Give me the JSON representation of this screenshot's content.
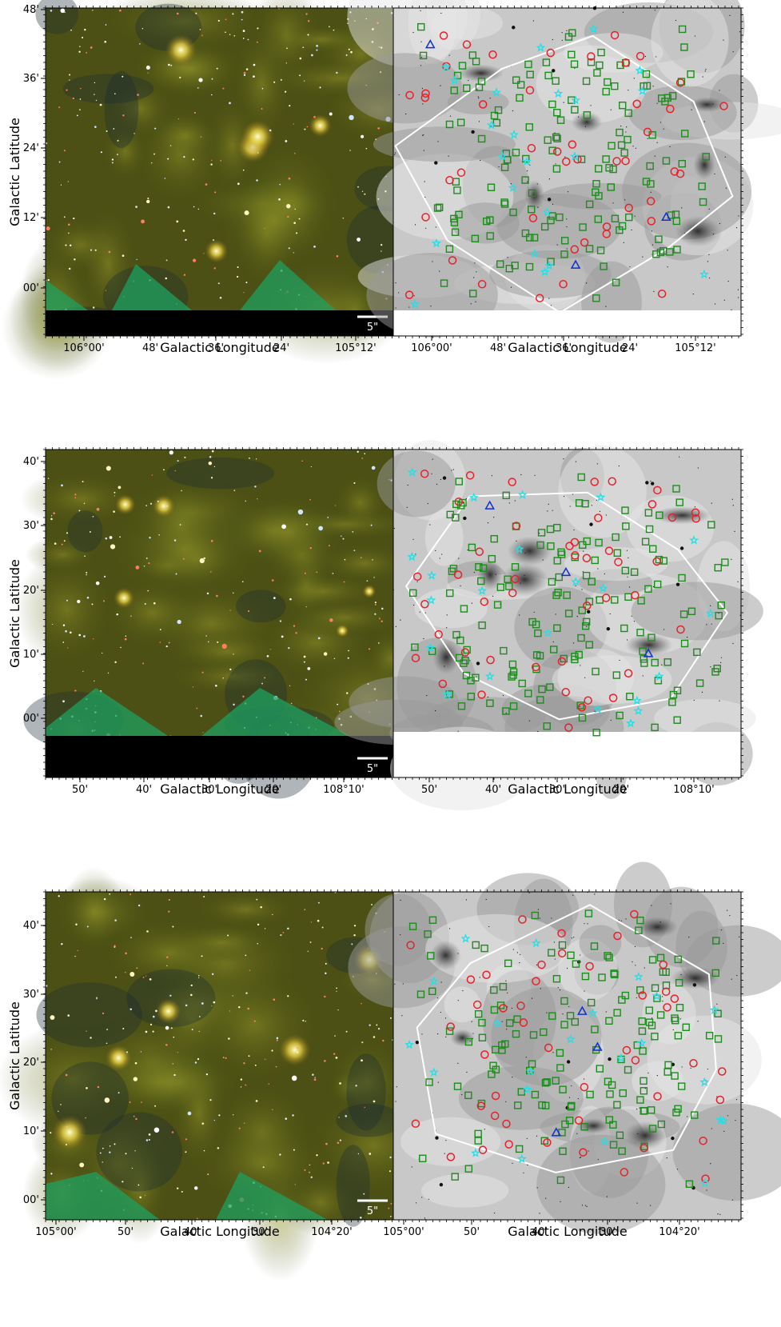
{
  "figure": {
    "panels": [
      {
        "id": "top",
        "xlabel": "Galactic Longitude",
        "ylabel": "Galactic Latitude",
        "xticks_left": [
          "106°00'",
          "48'",
          "36'",
          "24'",
          "105°12'"
        ],
        "xticks_right": [
          "106°00'",
          "48'",
          "36'",
          "24'",
          "105°12'"
        ],
        "yticks": [
          "48'",
          "36'",
          "24'",
          "12'",
          "00'"
        ],
        "scalebar": "5\""
      },
      {
        "id": "middle",
        "xlabel": "Galactic Longitude",
        "ylabel": "Galactic Latitude",
        "xticks_left": [
          "50'",
          "40'",
          "30'",
          "20'",
          "108°10'"
        ],
        "xticks_right": [
          "50'",
          "40'",
          "30'",
          "20'",
          "108°10'"
        ],
        "yticks": [
          "40'",
          "30'",
          "20'",
          "10'",
          "00'"
        ],
        "scalebar": "5\""
      },
      {
        "id": "bottom",
        "xlabel": "Galactic Longitude",
        "ylabel": "Galactic Latitude",
        "xticks_left": [
          "105°00'",
          "50'",
          "40'",
          "30'",
          "104°20'"
        ],
        "xticks_right": [
          "105°00'",
          "50'",
          "40'",
          "30'",
          "104°20'"
        ],
        "yticks": [
          "40'",
          "30'",
          "20'",
          "10'",
          "00'"
        ],
        "scalebar": "5\""
      }
    ],
    "colors": {
      "circle": "#e8202a",
      "square": "#1e8c1e",
      "star": "#22e0e8",
      "triangle": "#1030d0",
      "outline": "#ffffff"
    }
  }
}
